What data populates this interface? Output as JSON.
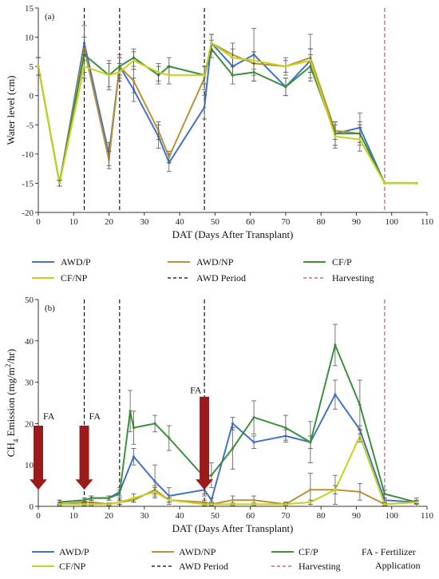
{
  "chart_data": [
    {
      "type": "line",
      "panel_label": "(a)",
      "xlabel": "DAT (Days After Transplant)",
      "ylabel": "Water level (cm)",
      "xlim": [
        0,
        110
      ],
      "ylim": [
        -20,
        15
      ],
      "x_ticks": [
        0,
        10,
        20,
        30,
        40,
        50,
        60,
        70,
        80,
        90,
        100,
        110
      ],
      "y_ticks": [
        -20,
        -15,
        -10,
        -5,
        0,
        5,
        10,
        15
      ],
      "grid": false,
      "legend_position": "bottom",
      "vlines": [
        {
          "x": 13,
          "style": "AWD Period"
        },
        {
          "x": 23,
          "style": "AWD Period"
        },
        {
          "x": 47,
          "style": "AWD Period"
        },
        {
          "x": 98,
          "style": "Harvesting"
        }
      ],
      "series": [
        {
          "name": "AWD/P",
          "color": "#4472C4",
          "x": [
            0,
            6,
            13,
            20,
            23,
            27,
            34,
            37,
            47,
            49,
            55,
            61,
            70,
            77,
            84,
            91,
            98,
            107
          ],
          "y": [
            5,
            -15,
            9,
            -10,
            5,
            1,
            -7,
            -11.5,
            -2,
            9,
            5,
            7,
            1.5,
            6,
            -6.5,
            -5.5,
            -15,
            -15
          ],
          "err": [
            1.5,
            0.5,
            3,
            2,
            1.5,
            2,
            2,
            1.5,
            2,
            1.5,
            1.5,
            4.5,
            1.5,
            2,
            2,
            2.5,
            0,
            0
          ]
        },
        {
          "name": "AWD/NP",
          "color": "#B8923A",
          "x": [
            0,
            6,
            13,
            20,
            23,
            27,
            34,
            37,
            47,
            49,
            55,
            61,
            70,
            77,
            84,
            91,
            98,
            107
          ],
          "y": [
            5,
            -15,
            8,
            -11,
            5,
            2.5,
            -6,
            -10.5,
            3,
            9,
            7,
            5.5,
            5,
            6.5,
            -6,
            -6.5,
            -15,
            -15
          ],
          "err": [
            1.5,
            0.5,
            4,
            1.5,
            2,
            2,
            1.5,
            1,
            2,
            1.5,
            2,
            2,
            1,
            4,
            1.5,
            1.5,
            0,
            0
          ]
        },
        {
          "name": "CF/P",
          "color": "#3E8E3E",
          "x": [
            0,
            6,
            13,
            20,
            23,
            27,
            34,
            37,
            47,
            49,
            55,
            61,
            70,
            77,
            84,
            91,
            98,
            107
          ],
          "y": [
            5,
            -15,
            7,
            3.5,
            5,
            6.5,
            3.5,
            5,
            3.5,
            8,
            3.5,
            4,
            1.5,
            5,
            -6.5,
            -6.5,
            -15,
            -15
          ],
          "err": [
            1.5,
            0.5,
            3,
            2.5,
            1.5,
            1.5,
            1.5,
            1.5,
            1.5,
            1.5,
            1.5,
            1.5,
            1.5,
            2,
            2,
            2,
            0,
            0
          ]
        },
        {
          "name": "CF/NP",
          "color": "#C9D21B",
          "x": [
            0,
            6,
            13,
            20,
            23,
            27,
            34,
            37,
            47,
            49,
            55,
            61,
            70,
            77,
            84,
            91,
            98,
            107
          ],
          "y": [
            5,
            -15,
            5,
            3.5,
            4,
            6,
            4,
            3.5,
            3.5,
            9,
            6.5,
            6,
            5,
            6,
            -7,
            -7.5,
            -15,
            -15
          ],
          "err": [
            1.5,
            0.5,
            2,
            2,
            1.5,
            1.5,
            1.5,
            1.5,
            1.5,
            1.5,
            1.5,
            1.5,
            1.5,
            2,
            2,
            2,
            0,
            0
          ]
        }
      ]
    },
    {
      "type": "line",
      "panel_label": "(b)",
      "xlabel": "DAT (Days After Transplant)",
      "ylabel": "CH4 Emission (mg/m2/hr)",
      "xlim": [
        0,
        110
      ],
      "ylim": [
        0,
        50
      ],
      "x_ticks": [
        0,
        10,
        20,
        30,
        40,
        50,
        60,
        70,
        80,
        90,
        100,
        110
      ],
      "y_ticks": [
        0,
        10,
        20,
        30,
        40,
        50
      ],
      "grid": false,
      "legend_position": "bottom",
      "vlines": [
        {
          "x": 13,
          "style": "AWD Period"
        },
        {
          "x": 23,
          "style": "AWD Period"
        },
        {
          "x": 47,
          "style": "AWD Period"
        },
        {
          "x": 98,
          "style": "Harvesting"
        }
      ],
      "annotations": [
        {
          "text": "FA",
          "x": 0
        },
        {
          "text": "FA",
          "x": 13
        },
        {
          "text": "FA",
          "x": 47
        }
      ],
      "series": [
        {
          "name": "AWD/P",
          "color": "#4472C4",
          "x": [
            6,
            13,
            15,
            20,
            23,
            27,
            33,
            37,
            47,
            49,
            55,
            61,
            70,
            77,
            84,
            91,
            98,
            107
          ],
          "y": [
            1,
            1.5,
            2,
            2,
            3.5,
            12,
            6,
            2.5,
            4,
            1.5,
            20,
            15.5,
            17,
            15.5,
            27,
            18.5,
            1.5,
            1
          ],
          "err": [
            0.5,
            0.5,
            0.5,
            0.5,
            1,
            2,
            4,
            2,
            1.5,
            0.5,
            1.5,
            1.5,
            1.5,
            1.5,
            3.5,
            1,
            0.5,
            0.5
          ]
        },
        {
          "name": "AWD/NP",
          "color": "#B8923A",
          "x": [
            6,
            13,
            15,
            20,
            23,
            27,
            33,
            37,
            47,
            49,
            55,
            61,
            70,
            77,
            84,
            91,
            98,
            107
          ],
          "y": [
            0.5,
            1,
            1,
            0.5,
            1,
            1.5,
            4,
            1.5,
            1,
            0.5,
            1.5,
            1.5,
            0.5,
            4,
            4,
            3.5,
            0.5,
            1
          ],
          "err": [
            0.3,
            0.3,
            0.5,
            0.3,
            0.5,
            0.5,
            1,
            0.5,
            0.5,
            0.3,
            1,
            1,
            0.5,
            4,
            3.5,
            2,
            0.3,
            0.3
          ]
        },
        {
          "name": "CF/P",
          "color": "#3E8E3E",
          "x": [
            6,
            13,
            15,
            20,
            23,
            26,
            27,
            33,
            37,
            47,
            49,
            55,
            61,
            70,
            77,
            84,
            91,
            98,
            107
          ],
          "y": [
            1,
            1.5,
            2,
            2,
            3,
            23,
            19,
            20,
            16.5,
            7,
            7.5,
            14,
            21.5,
            19,
            15.5,
            39,
            24.5,
            3,
            1
          ],
          "err": [
            0.5,
            0.5,
            0.5,
            0.5,
            1,
            5,
            4,
            2,
            3,
            4,
            3,
            5,
            4,
            3,
            5,
            5,
            6,
            1,
            1
          ]
        },
        {
          "name": "CF/NP",
          "color": "#C9D21B",
          "x": [
            6,
            13,
            15,
            20,
            23,
            27,
            33,
            37,
            47,
            49,
            55,
            61,
            70,
            77,
            84,
            91,
            98,
            107
          ],
          "y": [
            0.5,
            0.5,
            0.5,
            0.5,
            1,
            2,
            3.5,
            1.5,
            0.5,
            0.5,
            0.5,
            0.5,
            0.5,
            1,
            4,
            17,
            0.5,
            1
          ],
          "err": [
            0.3,
            0.3,
            0.3,
            0.3,
            0.5,
            1,
            1,
            0.5,
            0.3,
            0.3,
            0.3,
            0.3,
            0.3,
            0.5,
            1,
            1.5,
            0.3,
            0.3
          ]
        }
      ]
    }
  ],
  "legend_a": {
    "items": [
      {
        "label": "AWD/P",
        "color": "#4472C4",
        "dash": false
      },
      {
        "label": "AWD/NP",
        "color": "#B8923A",
        "dash": false
      },
      {
        "label": "CF/P",
        "color": "#3E8E3E",
        "dash": false
      },
      {
        "label": "CF/NP",
        "color": "#C9D21B",
        "dash": false
      },
      {
        "label": "AWD Period",
        "color": "#000000",
        "dash": true
      },
      {
        "label": "Harvesting",
        "color": "#C0504D",
        "dash": true
      }
    ]
  },
  "legend_b": {
    "items": [
      {
        "label": "AWD/P",
        "color": "#4472C4",
        "dash": false
      },
      {
        "label": "AWD/NP",
        "color": "#B8923A",
        "dash": false
      },
      {
        "label": "CF/P",
        "color": "#3E8E3E",
        "dash": false
      },
      {
        "label": "CF/NP",
        "color": "#C9D21B",
        "dash": false
      },
      {
        "label": "AWD Period",
        "color": "#000000",
        "dash": true
      },
      {
        "label": "Harvesting",
        "color": "#C0504D",
        "dash": true
      }
    ],
    "fa_note_line1": "FA - Fertilizer",
    "fa_note_line2": "Application"
  },
  "colors": {
    "awd_period": "#000000",
    "harvesting": "#C0504D",
    "fa_arrow": "#9B1B1B"
  }
}
